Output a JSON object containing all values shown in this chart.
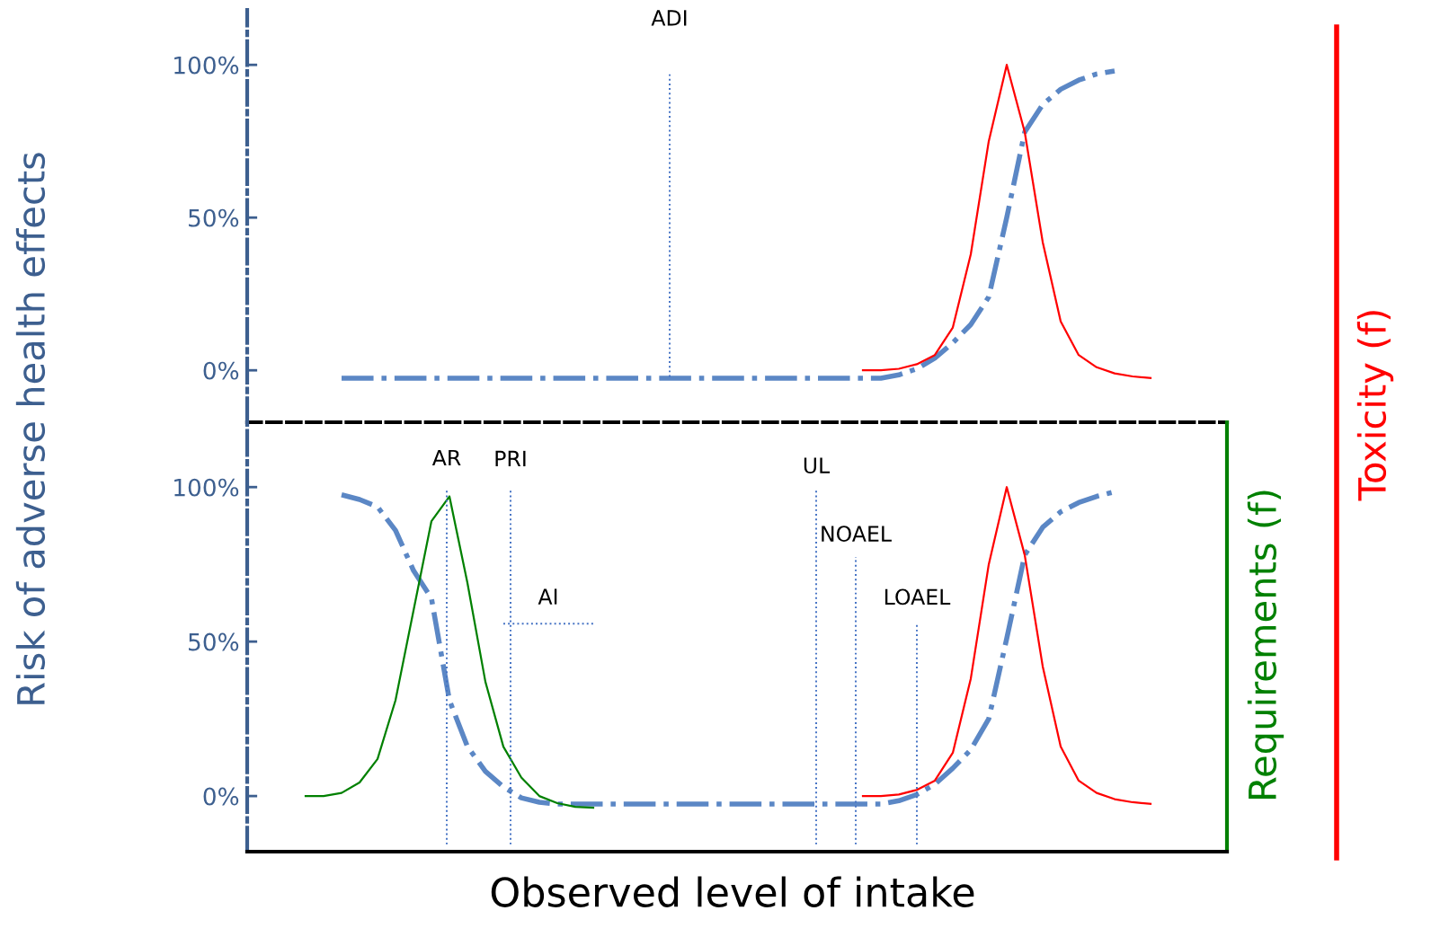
{
  "chart_data": [
    {
      "type": "line",
      "ylabel": "Risk of adverse health effects",
      "y2label": "Toxicity (f)",
      "categories": [
        null,
        null,
        null,
        null,
        null,
        null,
        null,
        null,
        null,
        null,
        null,
        null,
        null,
        null,
        null,
        null,
        null,
        null,
        null,
        null,
        null,
        null,
        null,
        null,
        null,
        null,
        null,
        null,
        null,
        null,
        null,
        null,
        null,
        null,
        null,
        null,
        null,
        null,
        null,
        null,
        null,
        null,
        null,
        null,
        null,
        null,
        null,
        null,
        null,
        null,
        null,
        null,
        null,
        null,
        null
      ],
      "ylim": [
        -17,
        118
      ],
      "yticks": [
        {
          "value": 0,
          "label": "0%"
        },
        {
          "value": 50,
          "label": "50%"
        },
        {
          "value": 100,
          "label": "100%"
        }
      ],
      "tick_labels": "y",
      "grid": false,
      "legend": false,
      "series": [
        {
          "color": "#5b87c5",
          "line_style": "dashdot",
          "values": [
            null,
            null,
            null,
            null,
            null,
            -2.6,
            -2.6,
            -2.6,
            -2.6,
            -2.6,
            -2.6,
            -2.6,
            -2.6,
            -2.6,
            -2.6,
            -2.6,
            -2.6,
            -2.6,
            -2.6,
            -2.6,
            -2.6,
            -2.6,
            -2.6,
            -2.6,
            -2.6,
            -2.6,
            -2.6,
            -2.6,
            -2.6,
            -2.6,
            -2.6,
            -2.6,
            -2.6,
            -2.6,
            -2.6,
            -2.6,
            -1.5,
            0.5,
            4,
            9,
            15,
            24,
            50,
            78,
            87,
            92,
            95,
            97,
            98,
            null,
            null,
            null,
            null,
            null,
            null
          ]
        },
        {
          "color": "#ff0000",
          "line_style": "solid",
          "values": [
            null,
            null,
            null,
            null,
            null,
            null,
            null,
            null,
            null,
            null,
            null,
            null,
            null,
            null,
            null,
            null,
            null,
            null,
            null,
            null,
            null,
            null,
            null,
            null,
            null,
            null,
            null,
            null,
            null,
            null,
            null,
            null,
            null,
            null,
            0,
            0,
            0.5,
            2,
            5,
            14,
            38,
            75,
            100,
            78,
            42,
            16,
            5,
            1,
            -1,
            -2,
            -2.5,
            null,
            null,
            null,
            null
          ]
        }
      ],
      "annotations": [
        "ADI"
      ]
    },
    {
      "type": "line",
      "xlabel": "Observed level of intake",
      "y2label": "Requirements (f)",
      "categories": [
        null,
        null,
        null,
        null,
        null,
        null,
        null,
        null,
        null,
        null,
        null,
        null,
        null,
        null,
        null,
        null,
        null,
        null,
        null,
        null,
        null,
        null,
        null,
        null,
        null,
        null,
        null,
        null,
        null,
        null,
        null,
        null,
        null,
        null,
        null,
        null,
        null,
        null,
        null,
        null,
        null,
        null,
        null,
        null,
        null,
        null,
        null,
        null,
        null,
        null,
        null,
        null,
        null,
        null,
        null
      ],
      "ylim": [
        -18,
        121
      ],
      "yticks": [
        {
          "value": 0,
          "label": "0%"
        },
        {
          "value": 50,
          "label": "50%"
        },
        {
          "value": 100,
          "label": "100%"
        }
      ],
      "tick_labels": "y",
      "grid": false,
      "legend": false,
      "series": [
        {
          "color": "#5b87c5",
          "line_style": "dashdot",
          "values": [
            null,
            null,
            null,
            null,
            null,
            97.5,
            96,
            93.6,
            86,
            73,
            64,
            31,
            16,
            8,
            3,
            -0.6,
            -2,
            -2.6,
            -2.6,
            -2.6,
            -2.6,
            -2.6,
            -2.6,
            -2.6,
            -2.6,
            -2.6,
            -2.6,
            -2.6,
            -2.6,
            -2.6,
            -2.6,
            -2.6,
            -2.6,
            -2.6,
            -2.6,
            -2.6,
            -1.5,
            0.5,
            3.8,
            9,
            15,
            25,
            51,
            78,
            87,
            92,
            95,
            97,
            98.5,
            null,
            null,
            null,
            null,
            null,
            null
          ]
        },
        {
          "color": "#008000",
          "line_style": "solid",
          "values": [
            null,
            null,
            null,
            0,
            0,
            1,
            4.4,
            12,
            31,
            60,
            89,
            97,
            69,
            37,
            16,
            6,
            0,
            -2.3,
            -3.5,
            -3.8,
            null,
            null,
            null,
            null,
            null,
            null,
            null,
            null,
            null,
            null,
            null,
            null,
            null,
            null,
            null,
            null,
            null,
            null,
            null,
            null,
            null,
            null,
            null,
            null,
            null,
            null,
            null,
            null,
            null,
            null,
            null,
            null,
            null,
            null,
            null
          ]
        },
        {
          "color": "#ff0000",
          "line_style": "solid",
          "values": [
            null,
            null,
            null,
            null,
            null,
            null,
            null,
            null,
            null,
            null,
            null,
            null,
            null,
            null,
            null,
            null,
            null,
            null,
            null,
            null,
            null,
            null,
            null,
            null,
            null,
            null,
            null,
            null,
            null,
            null,
            null,
            null,
            null,
            null,
            0,
            0,
            0.5,
            2,
            5,
            14,
            38,
            75,
            100,
            78,
            42,
            16,
            5,
            1,
            -1,
            -2,
            -2.5,
            null,
            null,
            null,
            null
          ]
        },
        {
          "name": "AI",
          "color": "#4472c4",
          "line_style": "dotted",
          "values": [
            null,
            null,
            null,
            null,
            null,
            null,
            null,
            null,
            null,
            null,
            null,
            null,
            null,
            null,
            55.8,
            55.8,
            55.8,
            55.8,
            55.8,
            55.8,
            null,
            null,
            null,
            null,
            null,
            null,
            null,
            null,
            null,
            null,
            null,
            null,
            null,
            null,
            null,
            null,
            null,
            null,
            null,
            null,
            null,
            null,
            null,
            null,
            null,
            null,
            null,
            null,
            null,
            null,
            null,
            null,
            null,
            null,
            null
          ]
        }
      ],
      "annotations": [
        "AR",
        "PRI",
        "UL",
        "NOAEL",
        "LOAEL"
      ]
    }
  ]
}
